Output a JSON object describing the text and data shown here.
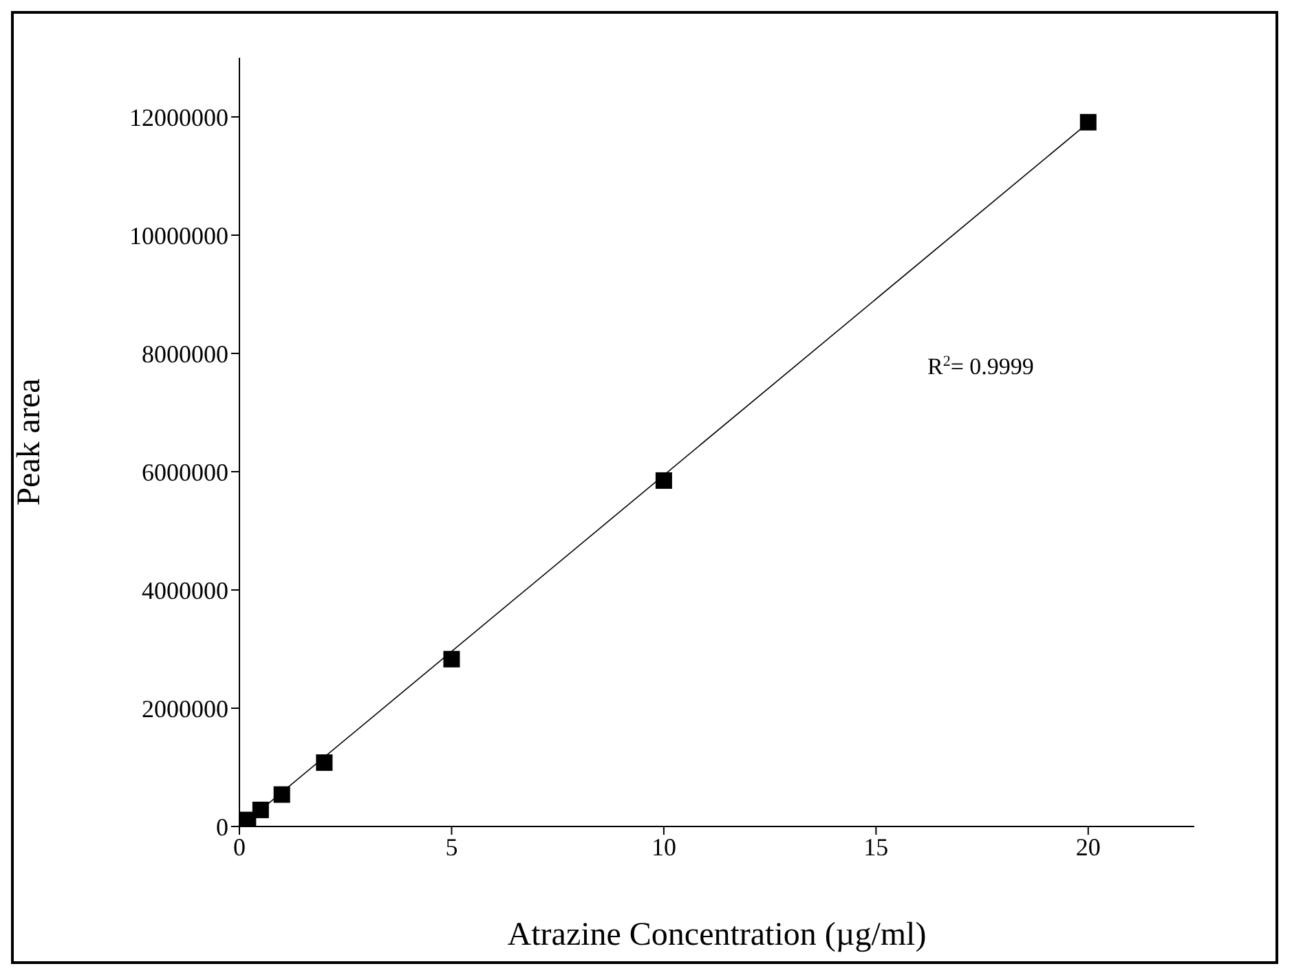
{
  "chart_data": {
    "type": "scatter",
    "xlabel": "Atrazine Concentration (µg/ml)",
    "ylabel": "Peak area",
    "annotations": [
      "R$^{2}$= 0.9999"
    ],
    "xlim": [
      0,
      22.5
    ],
    "xticks": [
      0,
      5,
      10,
      15,
      20
    ],
    "ylim": [
      0,
      13000000
    ],
    "yticks": [
      0,
      2000000,
      4000000,
      6000000,
      8000000,
      10000000,
      12000000
    ],
    "grid": false,
    "legend": false,
    "series": [
      {
        "marker": "square",
        "color": "#000000",
        "x": [
          0.2,
          0.5,
          1,
          2,
          5,
          10,
          20
        ],
        "values": [
          110000,
          280000,
          540000,
          1080000,
          2830000,
          5850000,
          11910000
        ]
      },
      {
        "type": "line",
        "marker": "none",
        "color": "#000000",
        "x": [
          0.2,
          20
        ],
        "values": [
          100000,
          11900000
        ]
      }
    ]
  }
}
